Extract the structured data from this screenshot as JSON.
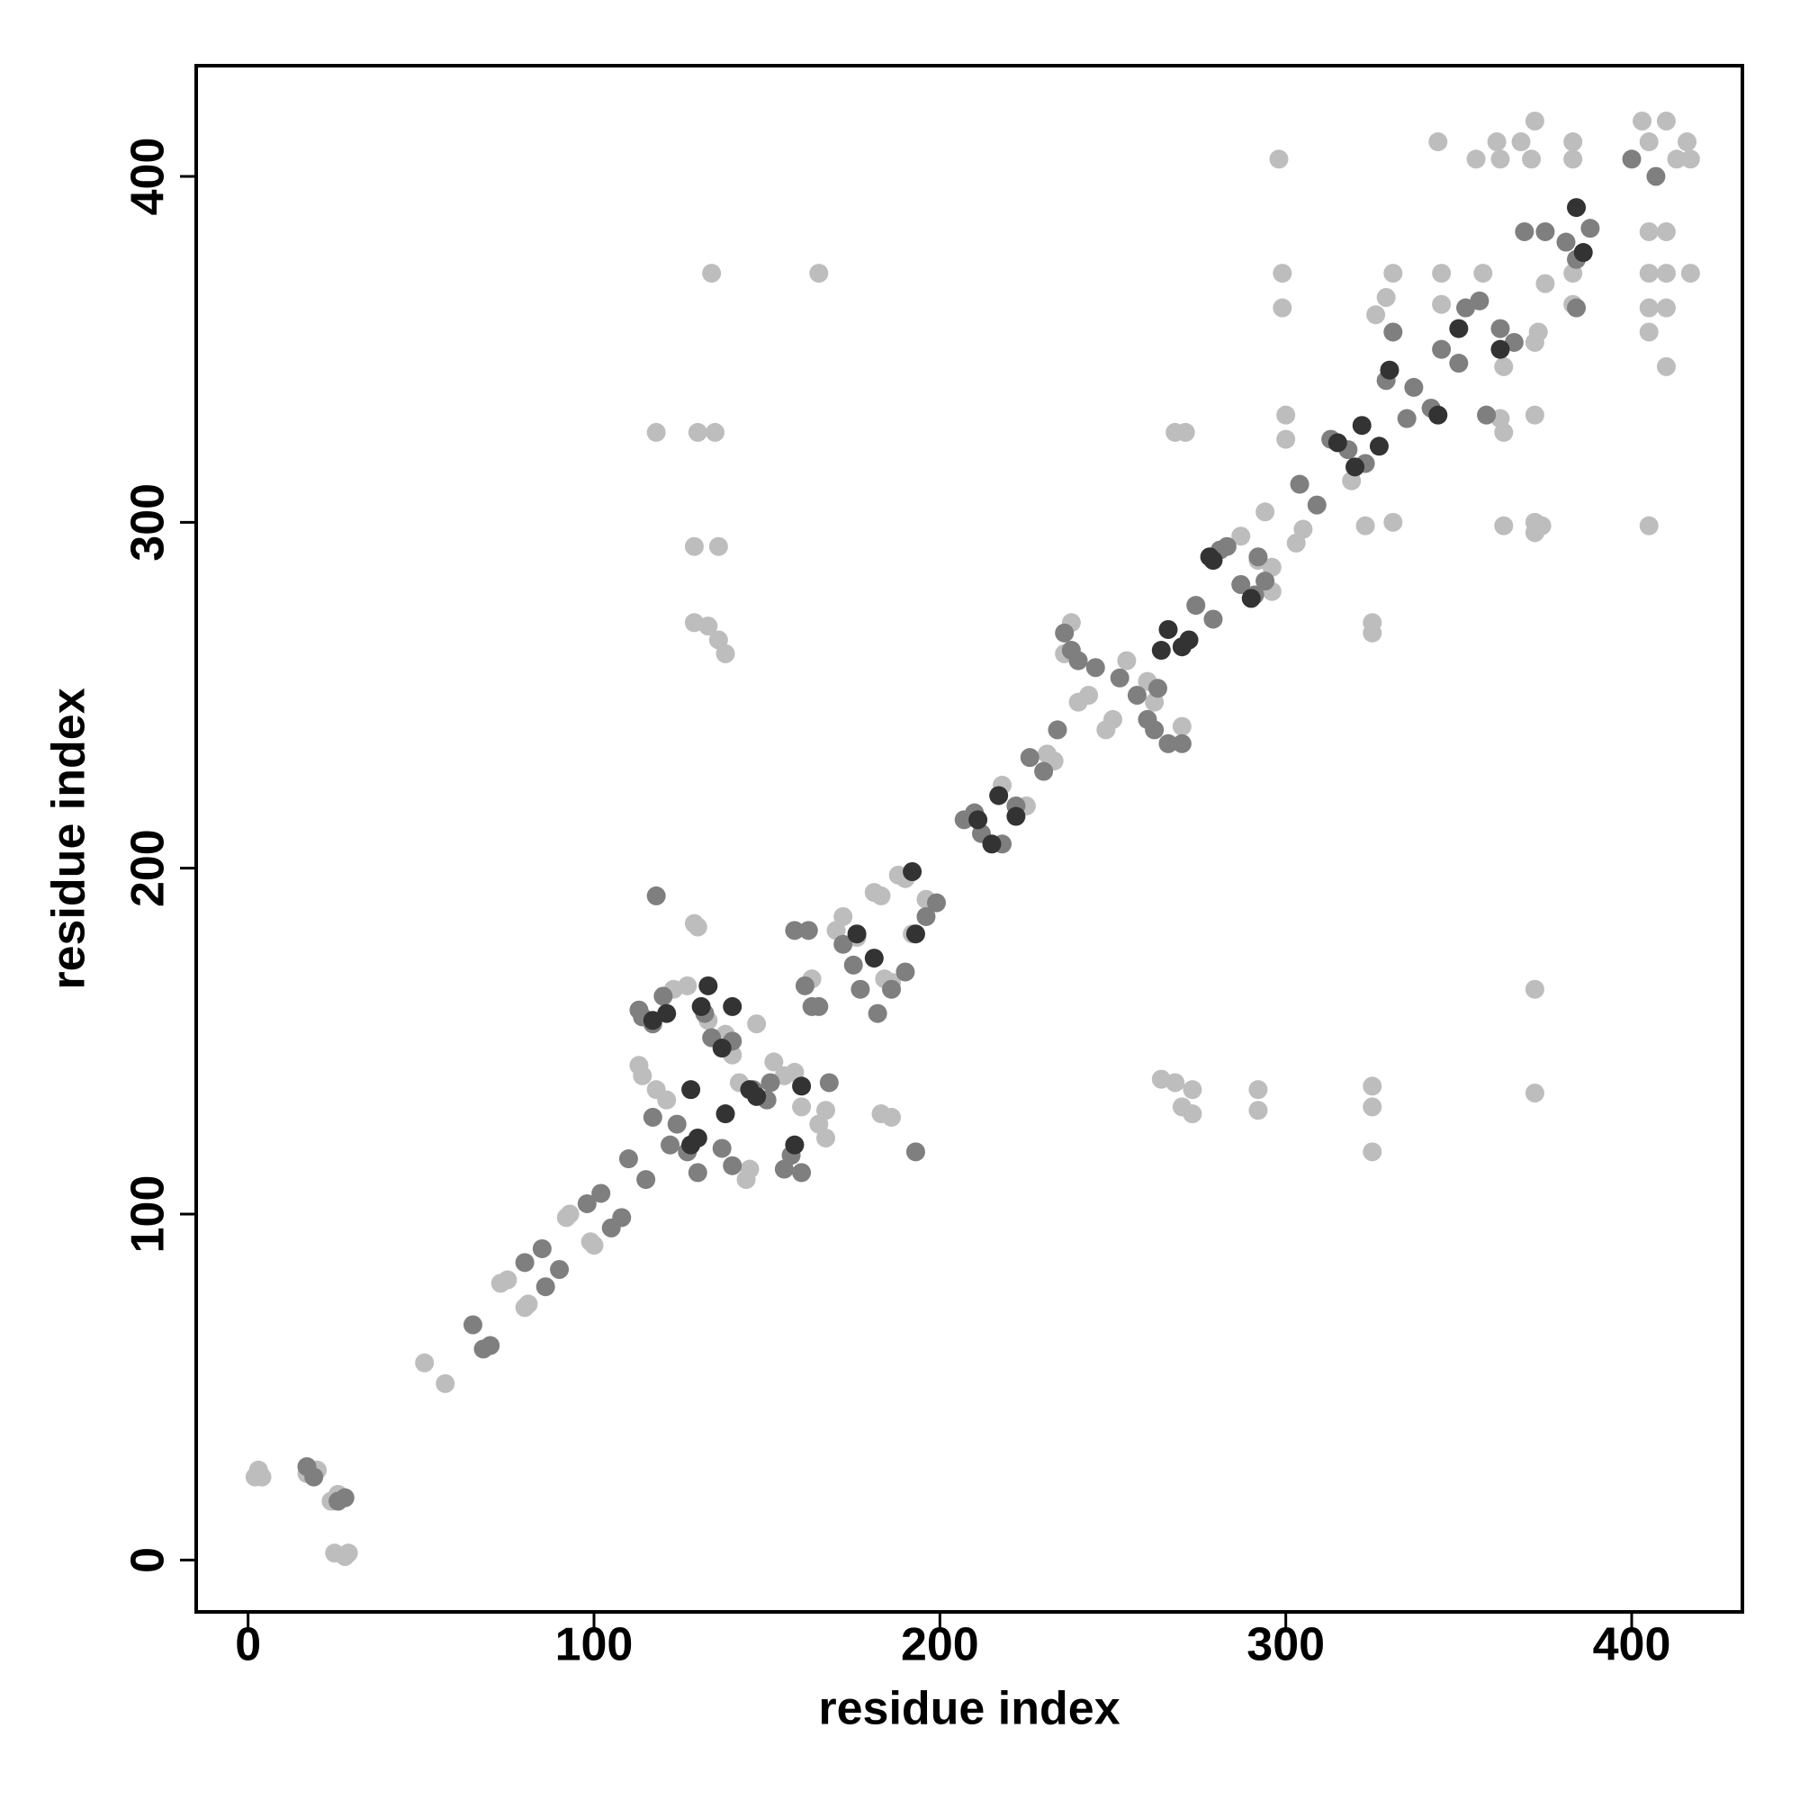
{
  "chart_data": {
    "type": "scatter",
    "xlabel": "residue index",
    "ylabel": "residue index",
    "xlim": [
      -15,
      432
    ],
    "ylim": [
      -15,
      432
    ],
    "xticks": [
      0,
      100,
      200,
      300,
      400
    ],
    "yticks": [
      0,
      100,
      200,
      300,
      400
    ],
    "grid": false,
    "series": [
      {
        "color": "#bdbdbd",
        "x": [
          2,
          3,
          4,
          17,
          20,
          24,
          26,
          25,
          28,
          29,
          51,
          57,
          73,
          75,
          80,
          81,
          92,
          93,
          99,
          100,
          118,
          130,
          135,
          129,
          136,
          134,
          165,
          129,
          133,
          136,
          138,
          129,
          130,
          113,
          114,
          118,
          121,
          123,
          127,
          133,
          138,
          140,
          142,
          144,
          145,
          147,
          152,
          155,
          158,
          160,
          163,
          165,
          167,
          167,
          170,
          172,
          176,
          181,
          183,
          184,
          186,
          188,
          190,
          192,
          196,
          183,
          186,
          218,
          225,
          231,
          233,
          236,
          238,
          240,
          243,
          248,
          250,
          254,
          260,
          262,
          266,
          270,
          268,
          271,
          264,
          268,
          270,
          273,
          273,
          287,
          292,
          296,
          296,
          292,
          292,
          294,
          298,
          299,
          300,
          299,
          300,
          303,
          305,
          319,
          323,
          325,
          325,
          325,
          325,
          325,
          326,
          329,
          331,
          331,
          344,
          345,
          345,
          355,
          357,
          361,
          362,
          363,
          362,
          363,
          363,
          368,
          371,
          372,
          373,
          372,
          372,
          372,
          372,
          374,
          372,
          372,
          375,
          383,
          383,
          383,
          383,
          403,
          405,
          405,
          405,
          405,
          405,
          405,
          410,
          410,
          410,
          410,
          410,
          413,
          416,
          417,
          417
        ],
        "values": [
          24,
          26,
          24,
          25,
          26,
          17,
          19,
          2,
          1,
          2,
          57,
          51,
          80,
          81,
          73,
          74,
          99,
          100,
          92,
          91,
          326,
          326,
          326,
          293,
          293,
          372,
          372,
          271,
          270,
          266,
          262,
          184,
          183,
          143,
          140,
          136,
          133,
          165,
          166,
          156,
          152,
          146,
          138,
          110,
          113,
          155,
          144,
          140,
          141,
          131,
          168,
          126,
          122,
          130,
          182,
          186,
          180,
          193,
          192,
          168,
          167,
          198,
          197,
          181,
          191,
          129,
          128,
          224,
          218,
          233,
          231,
          262,
          271,
          248,
          250,
          240,
          243,
          260,
          254,
          248,
          236,
          241,
          326,
          326,
          139,
          138,
          131,
          129,
          136,
          296,
          289,
          287,
          280,
          130,
          136,
          303,
          405,
          372,
          331,
          362,
          324,
          294,
          298,
          312,
          299,
          271,
          268,
          137,
          131,
          118,
          360,
          365,
          300,
          372,
          410,
          372,
          363,
          405,
          372,
          410,
          405,
          345,
          330,
          326,
          299,
          410,
          405,
          416,
          355,
          352,
          331,
          300,
          297,
          299,
          165,
          135,
          369,
          410,
          405,
          372,
          363,
          416,
          410,
          384,
          372,
          362,
          355,
          299,
          416,
          384,
          372,
          362,
          345,
          405,
          410,
          405,
          372
        ]
      },
      {
        "color": "#7f7f7f",
        "x": [
          17,
          19,
          26,
          28,
          65,
          68,
          70,
          80,
          85,
          86,
          90,
          98,
          102,
          105,
          108,
          110,
          115,
          118,
          117,
          113,
          114,
          120,
          117,
          124,
          122,
          127,
          130,
          132,
          134,
          137,
          140,
          140,
          146,
          150,
          151,
          155,
          157,
          160,
          158,
          162,
          161,
          163,
          165,
          168,
          172,
          175,
          177,
          182,
          186,
          190,
          193,
          196,
          199,
          207,
          210,
          212,
          218,
          222,
          226,
          230,
          234,
          236,
          238,
          240,
          245,
          252,
          257,
          260,
          262,
          263,
          266,
          270,
          274,
          279,
          281,
          283,
          287,
          291,
          294,
          292,
          304,
          309,
          313,
          318,
          323,
          329,
          331,
          335,
          337,
          342,
          345,
          350,
          352,
          356,
          358,
          362,
          366,
          369,
          375,
          381,
          384,
          388,
          400,
          407,
          384
        ],
        "values": [
          27,
          24,
          17,
          18,
          68,
          61,
          62,
          86,
          90,
          79,
          84,
          103,
          106,
          96,
          99,
          116,
          110,
          192,
          155,
          159,
          157,
          163,
          128,
          126,
          120,
          118,
          112,
          158,
          151,
          119,
          114,
          150,
          136,
          133,
          138,
          113,
          117,
          112,
          182,
          182,
          166,
          160,
          160,
          138,
          178,
          172,
          165,
          158,
          165,
          170,
          118,
          186,
          190,
          214,
          216,
          210,
          207,
          218,
          232,
          228,
          240,
          268,
          263,
          260,
          258,
          255,
          250,
          243,
          240,
          252,
          236,
          236,
          276,
          272,
          292,
          293,
          282,
          279,
          283,
          290,
          311,
          305,
          324,
          321,
          317,
          341,
          355,
          330,
          339,
          333,
          350,
          346,
          362,
          364,
          331,
          356,
          352,
          384,
          384,
          381,
          376,
          385,
          405,
          400,
          362
        ]
      },
      {
        "color": "#333333",
        "x": [
          117,
          121,
          128,
          128,
          130,
          131,
          133,
          137,
          138,
          140,
          145,
          147,
          158,
          160,
          181,
          176,
          192,
          193,
          211,
          215,
          217,
          222,
          264,
          266,
          270,
          272,
          278,
          279,
          290,
          315,
          320,
          322,
          327,
          330,
          344,
          350,
          362,
          384,
          386
        ],
        "values": [
          156,
          158,
          120,
          136,
          122,
          160,
          166,
          148,
          129,
          160,
          136,
          134,
          120,
          137,
          174,
          181,
          199,
          181,
          214,
          207,
          221,
          215,
          263,
          269,
          264,
          266,
          290,
          289,
          278,
          323,
          316,
          328,
          322,
          344,
          331,
          356,
          350,
          391,
          378
        ]
      }
    ]
  }
}
